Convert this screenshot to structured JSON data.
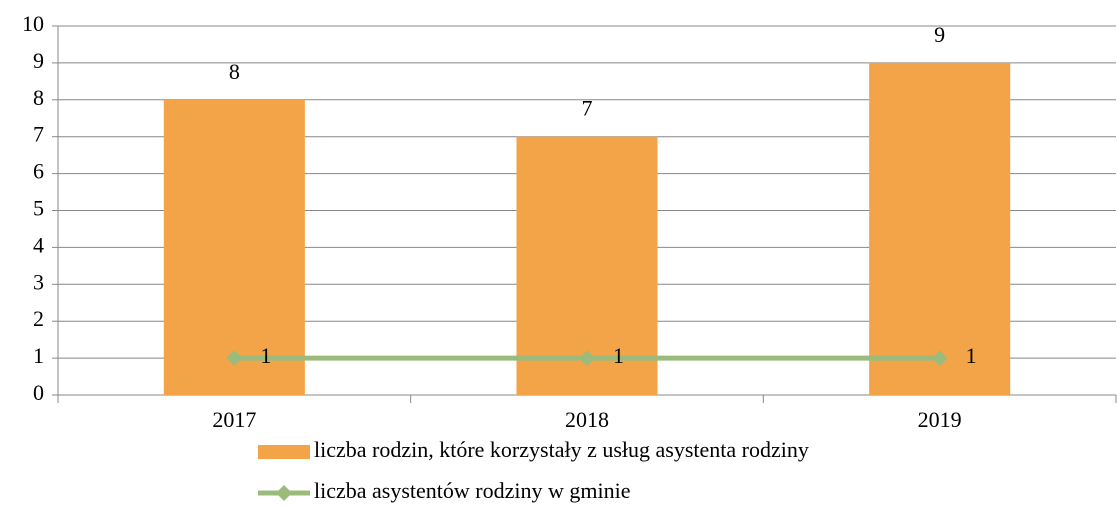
{
  "chart_data": {
    "type": "bar",
    "categories": [
      "2017",
      "2018",
      "2019"
    ],
    "series": [
      {
        "name": "liczba rodzin, które korzystały z usług asystenta rodziny",
        "type": "bar",
        "color": "#f4a448",
        "values": [
          8,
          7,
          9
        ]
      },
      {
        "name": "liczba asystentów rodziny w gminie",
        "type": "line",
        "color": "#9bbb7d",
        "values": [
          1,
          1,
          1
        ]
      }
    ],
    "ylim": [
      0,
      10
    ],
    "yticks": [
      0,
      1,
      2,
      3,
      4,
      5,
      6,
      7,
      8,
      9,
      10
    ],
    "grid": true,
    "legend": "bottom"
  }
}
